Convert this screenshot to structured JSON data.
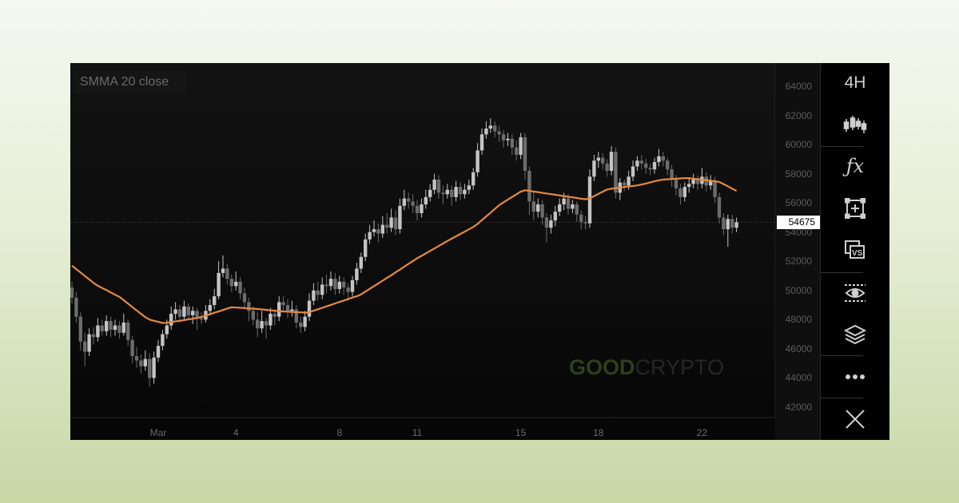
{
  "indicator_label": "SMMA 20 close",
  "watermark": {
    "bold": "GOOD",
    "light": "CRYPTO"
  },
  "toolbar": {
    "timeframe": "4H",
    "items": [
      "candles-icon",
      "fx-icon",
      "add-frame-icon",
      "compare-vs-icon",
      "visibility-eye-icon",
      "layers-icon",
      "more-dots-icon",
      "close-icon"
    ]
  },
  "colors": {
    "smma": "#e8893f",
    "up_candle": "#c4c4c4",
    "down_candle": "#6c6c6c",
    "price_tag_bg": "#ffffff"
  },
  "chart_data": {
    "type": "candlestick",
    "interval": "4H",
    "ylim": [
      41500,
      64800
    ],
    "y_ticks": [
      "64000",
      "62000",
      "60000",
      "58000",
      "56000",
      "54000",
      "52000",
      "50000",
      "48000",
      "46000",
      "44000",
      "42000"
    ],
    "x_ticks": [
      {
        "label": "Mar",
        "candle": 20
      },
      {
        "label": "4",
        "candle": 38
      },
      {
        "label": "8",
        "candle": 62
      },
      {
        "label": "11",
        "candle": 80
      },
      {
        "label": "15",
        "candle": 104
      },
      {
        "label": "18",
        "candle": 122
      },
      {
        "label": "22",
        "candle": 146
      }
    ],
    "last_price": "54675",
    "candles_ohlc": [
      [
        50200,
        50600,
        49100,
        49500
      ],
      [
        49500,
        49900,
        47800,
        48200
      ],
      [
        48200,
        48500,
        45900,
        46500
      ],
      [
        46500,
        47100,
        44800,
        45800
      ],
      [
        45800,
        47400,
        45500,
        47000
      ],
      [
        47000,
        47500,
        46300,
        46800
      ],
      [
        46800,
        48100,
        46500,
        47600
      ],
      [
        47600,
        48000,
        46900,
        47200
      ],
      [
        47200,
        48300,
        46900,
        47900
      ],
      [
        47900,
        48200,
        46800,
        47300
      ],
      [
        47300,
        48000,
        46900,
        47600
      ],
      [
        47600,
        47900,
        46700,
        47100
      ],
      [
        47100,
        48400,
        46900,
        47800
      ],
      [
        47800,
        48000,
        46200,
        46600
      ],
      [
        46600,
        46900,
        45000,
        45500
      ],
      [
        45500,
        46100,
        44700,
        45200
      ],
      [
        45200,
        45600,
        44300,
        44800
      ],
      [
        44800,
        45900,
        44500,
        45300
      ],
      [
        45300,
        45700,
        43400,
        44000
      ],
      [
        44000,
        45800,
        43600,
        45400
      ],
      [
        45400,
        46600,
        45100,
        46200
      ],
      [
        46200,
        47300,
        45900,
        47000
      ],
      [
        47000,
        48000,
        46700,
        47600
      ],
      [
        47600,
        48900,
        47300,
        48400
      ],
      [
        48400,
        49200,
        48000,
        48700
      ],
      [
        48700,
        49000,
        47800,
        48200
      ],
      [
        48200,
        49300,
        47900,
        48900
      ],
      [
        48900,
        49100,
        48000,
        48300
      ],
      [
        48300,
        48900,
        47700,
        48600
      ],
      [
        48600,
        48800,
        47300,
        48100
      ],
      [
        48100,
        48500,
        47700,
        48000
      ],
      [
        48000,
        49000,
        47800,
        48600
      ],
      [
        48600,
        49400,
        48300,
        49000
      ],
      [
        49000,
        50100,
        48700,
        49600
      ],
      [
        49600,
        52000,
        49400,
        51200
      ],
      [
        51200,
        52400,
        50900,
        51500
      ],
      [
        51500,
        51800,
        50400,
        50800
      ],
      [
        50800,
        51100,
        49900,
        50300
      ],
      [
        50300,
        51300,
        50000,
        50600
      ],
      [
        50600,
        50900,
        49400,
        49800
      ],
      [
        49800,
        50200,
        48800,
        49200
      ],
      [
        49200,
        49500,
        47900,
        48600
      ],
      [
        48600,
        48900,
        47600,
        48000
      ],
      [
        48000,
        48500,
        46800,
        47400
      ],
      [
        47400,
        48600,
        47100,
        47900
      ],
      [
        47900,
        48100,
        46700,
        47600
      ],
      [
        47600,
        48800,
        47300,
        48400
      ],
      [
        48400,
        48700,
        47600,
        48200
      ],
      [
        48200,
        49600,
        47900,
        49200
      ],
      [
        49200,
        49600,
        48500,
        49000
      ],
      [
        49000,
        49400,
        48100,
        48600
      ],
      [
        48600,
        49300,
        48200,
        48700
      ],
      [
        48700,
        49000,
        47400,
        47800
      ],
      [
        47800,
        48200,
        47100,
        47500
      ],
      [
        47500,
        48600,
        47200,
        48200
      ],
      [
        48200,
        49800,
        47900,
        49300
      ],
      [
        49300,
        50500,
        49000,
        50000
      ],
      [
        50000,
        50600,
        49300,
        49700
      ],
      [
        49700,
        50900,
        49400,
        50400
      ],
      [
        50400,
        51100,
        49800,
        50300
      ],
      [
        50300,
        51300,
        50000,
        50800
      ],
      [
        50800,
        51200,
        49700,
        50100
      ],
      [
        50100,
        51000,
        49800,
        50600
      ],
      [
        50600,
        50900,
        49700,
        50200
      ],
      [
        50200,
        50500,
        49300,
        49900
      ],
      [
        49900,
        51000,
        49600,
        50700
      ],
      [
        50700,
        51900,
        50400,
        51500
      ],
      [
        51500,
        52600,
        51200,
        52300
      ],
      [
        52300,
        53900,
        52000,
        53500
      ],
      [
        53500,
        54500,
        53200,
        54000
      ],
      [
        54000,
        54800,
        53700,
        54200
      ],
      [
        54200,
        54600,
        53300,
        53900
      ],
      [
        53900,
        55100,
        53600,
        54500
      ],
      [
        54500,
        55300,
        53900,
        54300
      ],
      [
        54300,
        55600,
        54000,
        55000
      ],
      [
        55000,
        55500,
        53800,
        54200
      ],
      [
        54200,
        56300,
        53900,
        55800
      ],
      [
        55800,
        56900,
        55500,
        56300
      ],
      [
        56300,
        56700,
        55600,
        56100
      ],
      [
        56100,
        56600,
        55300,
        55800
      ],
      [
        55800,
        56200,
        54800,
        55300
      ],
      [
        55300,
        56300,
        55000,
        55900
      ],
      [
        55900,
        56900,
        55600,
        56400
      ],
      [
        56400,
        57300,
        56100,
        56900
      ],
      [
        56900,
        58000,
        56600,
        57600
      ],
      [
        57600,
        57900,
        56300,
        56700
      ],
      [
        56700,
        57200,
        55900,
        56600
      ],
      [
        56600,
        57300,
        56300,
        56900
      ],
      [
        56900,
        57200,
        55800,
        56400
      ],
      [
        56400,
        57500,
        56100,
        57100
      ],
      [
        57100,
        57400,
        56200,
        56600
      ],
      [
        56600,
        57300,
        56300,
        56900
      ],
      [
        56900,
        57600,
        56600,
        57200
      ],
      [
        57200,
        58400,
        56900,
        58100
      ],
      [
        58100,
        60100,
        57800,
        59600
      ],
      [
        59600,
        61100,
        59300,
        60700
      ],
      [
        60700,
        61600,
        60400,
        61100
      ],
      [
        61100,
        61800,
        60800,
        61300
      ],
      [
        61300,
        61600,
        60500,
        60900
      ],
      [
        60900,
        61300,
        60200,
        60700
      ],
      [
        60700,
        61000,
        59800,
        60300
      ],
      [
        60300,
        60800,
        59900,
        60400
      ],
      [
        60400,
        60700,
        59300,
        59800
      ],
      [
        59800,
        60300,
        58900,
        59300
      ],
      [
        59300,
        60800,
        59000,
        60500
      ],
      [
        60500,
        60800,
        57600,
        58200
      ],
      [
        58200,
        58500,
        55200,
        56100
      ],
      [
        56100,
        56800,
        54800,
        55400
      ],
      [
        55400,
        56300,
        55000,
        55900
      ],
      [
        55900,
        56200,
        54500,
        55000
      ],
      [
        55000,
        55300,
        53300,
        54300
      ],
      [
        54300,
        55200,
        53900,
        54800
      ],
      [
        54800,
        55800,
        54400,
        55400
      ],
      [
        55400,
        56300,
        55100,
        55900
      ],
      [
        55900,
        56700,
        55500,
        56300
      ],
      [
        56300,
        56600,
        55200,
        55600
      ],
      [
        55600,
        56200,
        55300,
        55900
      ],
      [
        55900,
        56100,
        54700,
        55200
      ],
      [
        55200,
        55500,
        54200,
        54700
      ],
      [
        54700,
        55100,
        54200,
        54600
      ],
      [
        54600,
        58300,
        54300,
        57800
      ],
      [
        57800,
        59300,
        57500,
        58900
      ],
      [
        58900,
        59500,
        58400,
        59100
      ],
      [
        59100,
        59400,
        58300,
        58700
      ],
      [
        58700,
        59000,
        57800,
        58200
      ],
      [
        58200,
        59900,
        57900,
        59500
      ],
      [
        59500,
        59800,
        56300,
        56700
      ],
      [
        56700,
        57700,
        56200,
        57400
      ],
      [
        57400,
        57600,
        56800,
        57200
      ],
      [
        57200,
        58200,
        56900,
        57800
      ],
      [
        57800,
        58900,
        57500,
        58500
      ],
      [
        58500,
        59200,
        58200,
        58900
      ],
      [
        58900,
        59300,
        58300,
        58700
      ],
      [
        58700,
        59000,
        58000,
        58400
      ],
      [
        58400,
        58700,
        57900,
        58300
      ],
      [
        58300,
        59100,
        58000,
        58800
      ],
      [
        58800,
        59700,
        58500,
        59200
      ],
      [
        59200,
        59500,
        58500,
        58900
      ],
      [
        58900,
        59100,
        57900,
        58300
      ],
      [
        58300,
        58600,
        57100,
        57600
      ],
      [
        57600,
        57900,
        56500,
        57000
      ],
      [
        57000,
        57300,
        55900,
        56400
      ],
      [
        56400,
        57400,
        56100,
        57100
      ],
      [
        57100,
        57700,
        56700,
        57300
      ],
      [
        57300,
        58000,
        57000,
        57600
      ],
      [
        57600,
        57900,
        56900,
        57300
      ],
      [
        57300,
        58400,
        57000,
        57800
      ],
      [
        57800,
        58100,
        56800,
        57200
      ],
      [
        57200,
        57900,
        56900,
        57500
      ],
      [
        57500,
        57800,
        56000,
        56400
      ],
      [
        56400,
        56700,
        54600,
        55000
      ],
      [
        55000,
        55300,
        53800,
        54200
      ],
      [
        54200,
        55200,
        53000,
        54900
      ],
      [
        54900,
        55200,
        53900,
        54300
      ],
      [
        54300,
        55000,
        54000,
        54675
      ]
    ],
    "series": [
      {
        "name": "SMMA 20 close",
        "type": "line",
        "values": [
          51700,
          51460,
          51230,
          50990,
          50760,
          50520,
          50320,
          50170,
          50020,
          49860,
          49710,
          49560,
          49330,
          49100,
          48860,
          48630,
          48400,
          48170,
          48000,
          47920,
          47850,
          47770,
          47780,
          47830,
          47880,
          47920,
          47970,
          48020,
          48060,
          48110,
          48180,
          48280,
          48370,
          48470,
          48560,
          48660,
          48760,
          48850,
          48830,
          48810,
          48790,
          48770,
          48750,
          48730,
          48700,
          48670,
          48640,
          48610,
          48580,
          48560,
          48550,
          48530,
          48510,
          48500,
          48480,
          48510,
          48610,
          48710,
          48810,
          48910,
          49010,
          49110,
          49210,
          49310,
          49410,
          49510,
          49600,
          49730,
          49920,
          50110,
          50300,
          50480,
          50670,
          50860,
          51040,
          51240,
          51430,
          51630,
          51820,
          52020,
          52200,
          52370,
          52540,
          52710,
          52880,
          53050,
          53220,
          53390,
          53550,
          53710,
          53870,
          54030,
          54190,
          54350,
          54560,
          54820,
          55080,
          55330,
          55590,
          55850,
          56040,
          56220,
          56410,
          56590,
          56780,
          56870,
          56830,
          56780,
          56740,
          56690,
          56650,
          56600,
          56560,
          56510,
          56470,
          56420,
          56380,
          56340,
          56290,
          56250,
          56320,
          56470,
          56620,
          56770,
          56920,
          56980,
          57010,
          57050,
          57090,
          57130,
          57160,
          57200,
          57260,
          57330,
          57410,
          57480,
          57550,
          57600,
          57620,
          57640,
          57660,
          57680,
          57700,
          57700,
          57660,
          57630,
          57590,
          57560,
          57520,
          57490,
          57440,
          57290,
          57140,
          56980,
          56830
        ]
      }
    ]
  }
}
